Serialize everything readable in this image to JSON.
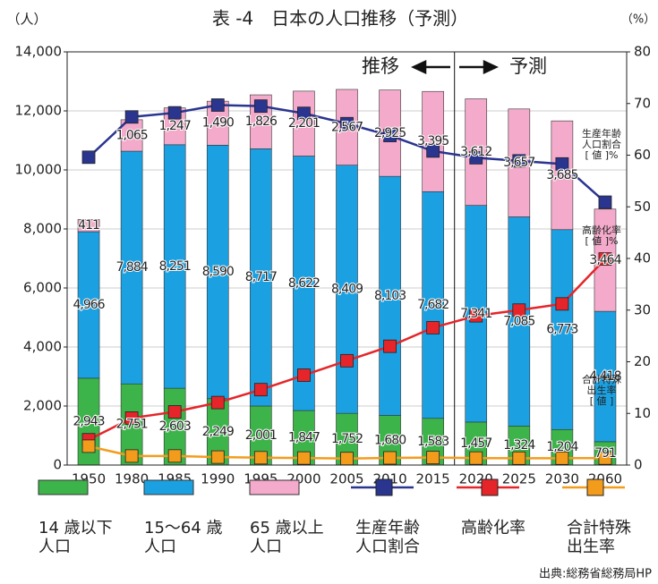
{
  "chart_data": {
    "type": "bar",
    "title": "表 -4　日本の人口推移（予測）",
    "y_label": "（人）",
    "y2_label": "（%）",
    "source": "出典:総務省総務局HP",
    "annotations": [
      "推移",
      "予測"
    ],
    "side_labels": [
      {
        "text": "生産年齢\n人口割合\n[ 値 ]%",
        "color": "#2a3590"
      },
      {
        "text": "高齢化率\n[ 値 ]%",
        "color": "#e5252a"
      },
      {
        "text": "合計特殊\n出生率\n[ 値 ]",
        "color": "#f39c1c"
      }
    ],
    "categories": [
      "1950",
      "1980",
      "1985",
      "1990",
      "1995",
      "2000",
      "2005",
      "2010",
      "2015",
      "2020",
      "2025",
      "2030",
      "2060"
    ],
    "ylim": [
      0,
      14000
    ],
    "yticks": [
      0,
      {
        "value": 2000,
        "label": "2,000"
      },
      {
        "value": 4000,
        "label": "4,000"
      },
      {
        "value": 6000,
        "label": "6,000"
      },
      {
        "value": 8000,
        "label": "8,000"
      },
      {
        "value": 10000,
        "label": "10,000"
      },
      {
        "value": 12000,
        "label": "12,000"
      },
      {
        "value": 14000,
        "label": "14,000"
      }
    ],
    "y2lim": [
      0,
      80
    ],
    "y2ticks": [
      0,
      10,
      20,
      30,
      40,
      50,
      60,
      70,
      80
    ],
    "grid": true,
    "series": [
      {
        "name": "14 歳以下\n人口",
        "color": "#3cb44a",
        "stacked": true,
        "values": [
          2943,
          2751,
          2603,
          2249,
          2001,
          1847,
          1752,
          1680,
          1583,
          1457,
          1324,
          1204,
          791
        ],
        "value_labels": [
          "2,943",
          "2,751",
          "2,603",
          "2,249",
          "2,001",
          "1,847",
          "1,752",
          "1,680",
          "1,583",
          "1,457",
          "1,324",
          "1,204",
          "791"
        ]
      },
      {
        "name": "15〜64 歳\n人口",
        "color": "#1ba1e2",
        "stacked": true,
        "values": [
          4966,
          7884,
          8251,
          8590,
          8717,
          8622,
          8409,
          8103,
          7682,
          7341,
          7085,
          6773,
          4418
        ],
        "value_labels": [
          "4,966",
          "7,884",
          "8,251",
          "8,590",
          "8,717",
          "8,622",
          "8,409",
          "8,103",
          "7,682",
          "7,341",
          "7,085",
          "6,773",
          "4,418"
        ]
      },
      {
        "name": "65 歳以上\n人口",
        "color": "#f4aacb",
        "stacked": true,
        "values": [
          411,
          1065,
          1247,
          1490,
          1826,
          2201,
          2567,
          2925,
          3395,
          3612,
          3657,
          3685,
          3464
        ],
        "value_labels": [
          "411",
          "1,065",
          "1,247",
          "1,490",
          "1,826",
          "2,201",
          "2,567",
          "2,925",
          "3,395",
          "3,612",
          "3,657",
          "3,685",
          "3,464"
        ]
      },
      {
        "name": "生産年齢\n人口割合",
        "color": "#2a3590",
        "type": "line",
        "axis": "y2",
        "values": [
          59.6,
          67.4,
          68.2,
          69.7,
          69.5,
          68.1,
          66.1,
          63.8,
          60.8,
          59.5,
          58.9,
          58.3,
          50.9
        ]
      },
      {
        "name": "高齢化率",
        "color": "#e5252a",
        "type": "line",
        "axis": "y2",
        "values": [
          4.9,
          9.1,
          10.3,
          12.1,
          14.6,
          17.4,
          20.2,
          23.0,
          26.6,
          28.9,
          30.0,
          31.2,
          39.9
        ]
      },
      {
        "name": "合計特殊\n出生率",
        "color": "#f39c1c",
        "type": "line",
        "axis": "y2",
        "values": [
          3.65,
          1.75,
          1.76,
          1.54,
          1.42,
          1.36,
          1.26,
          1.39,
          1.45,
          1.35,
          1.33,
          1.33,
          1.35
        ]
      }
    ]
  }
}
